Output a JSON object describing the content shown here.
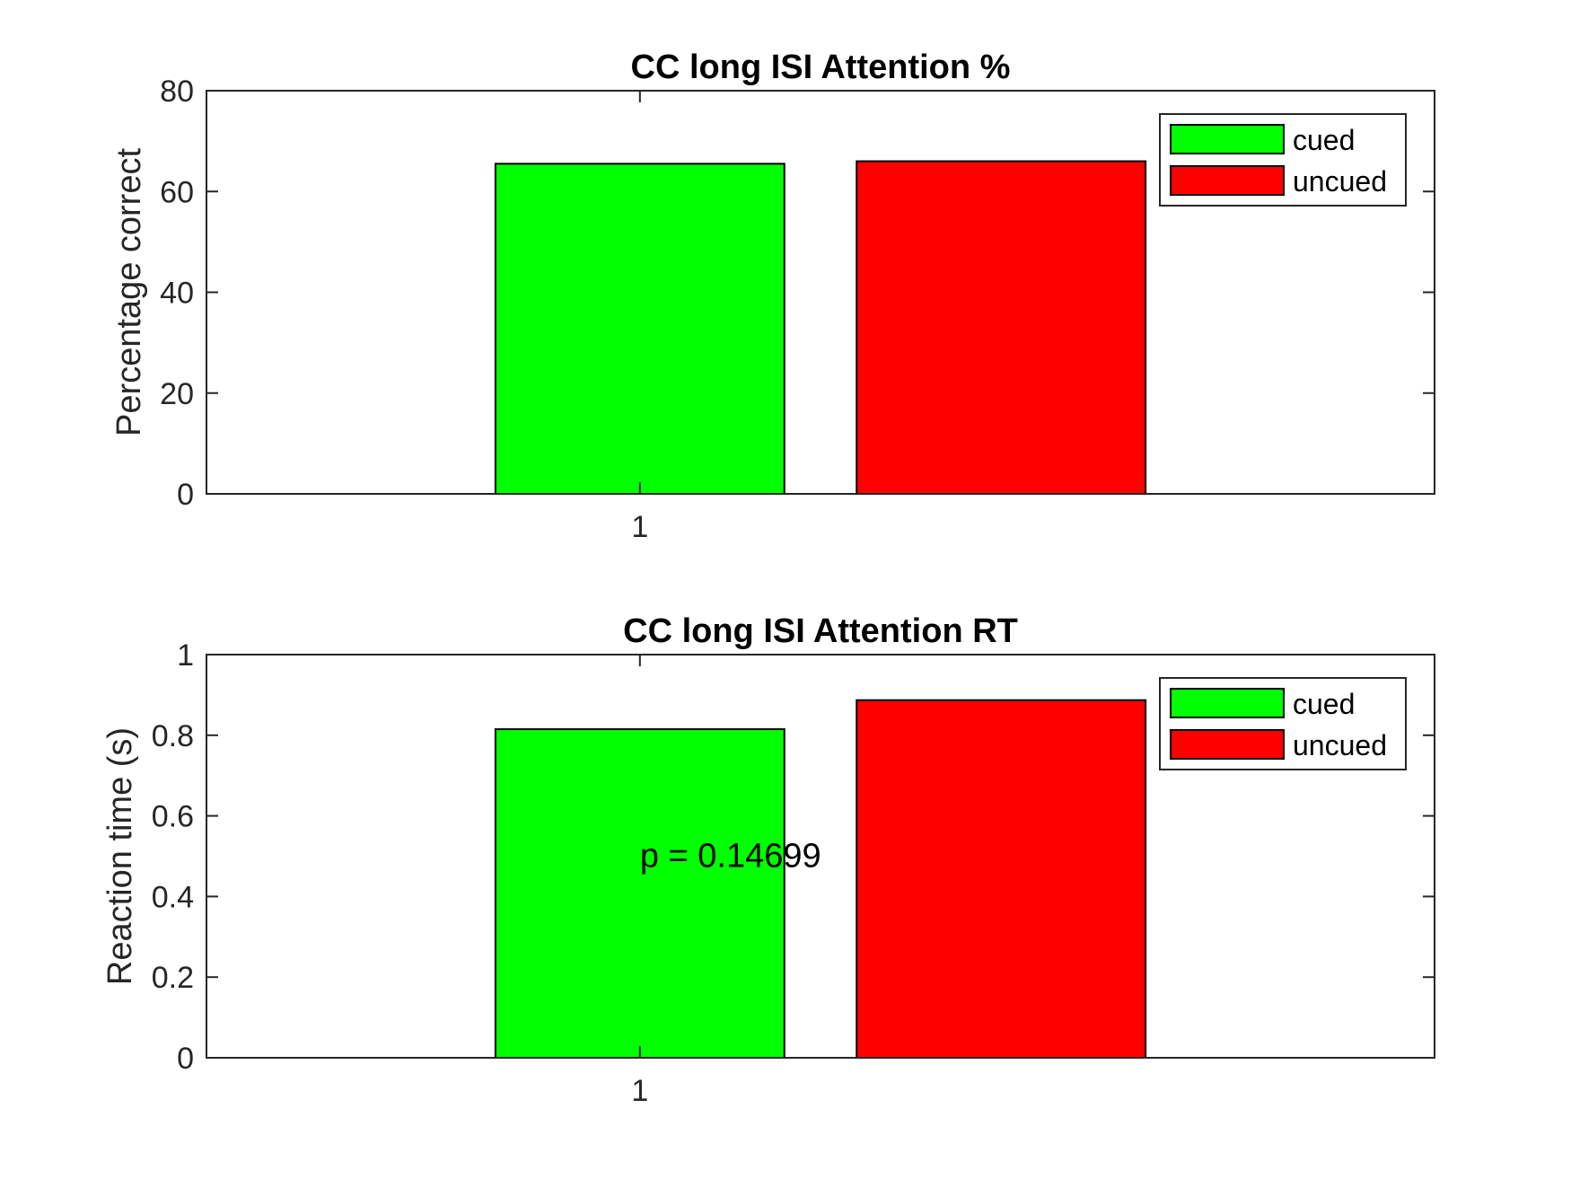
{
  "chart_data": [
    {
      "type": "bar",
      "title": "CC long ISI Attention %",
      "xlabel": "",
      "ylabel": "Percentage correct",
      "categories": [
        "1"
      ],
      "series": [
        {
          "name": "cued",
          "values": [
            65.5
          ],
          "color": "#00ff00"
        },
        {
          "name": "uncued",
          "values": [
            66.0
          ],
          "color": "#ff0000"
        }
      ],
      "ylim": [
        0,
        80
      ],
      "yticks": [
        "0",
        "20",
        "40",
        "60",
        "80"
      ],
      "ytick_values": [
        0,
        20,
        40,
        60,
        80
      ],
      "xlim": [
        0.4,
        2.1
      ],
      "bar_centers": [
        1.0,
        1.5
      ],
      "bar_width": 0.4,
      "legend_position": "top-right",
      "grid": false,
      "annotation": null
    },
    {
      "type": "bar",
      "title": "CC long ISI Attention RT",
      "xlabel": "",
      "ylabel": "Reaction time (s)",
      "categories": [
        "1"
      ],
      "series": [
        {
          "name": "cued",
          "values": [
            0.815
          ],
          "color": "#00ff00"
        },
        {
          "name": "uncued",
          "values": [
            0.887
          ],
          "color": "#ff0000"
        }
      ],
      "ylim": [
        0,
        1
      ],
      "yticks": [
        "0",
        "0.2",
        "0.4",
        "0.6",
        "0.8",
        "1"
      ],
      "ytick_values": [
        0,
        0.2,
        0.4,
        0.6,
        0.8,
        1
      ],
      "xlim": [
        0.4,
        2.1
      ],
      "bar_centers": [
        1.0,
        1.5
      ],
      "bar_width": 0.4,
      "legend_position": "top-right",
      "grid": false,
      "annotation": {
        "text": "p = 0.14699",
        "x": 1.0,
        "y": 0.5
      }
    }
  ]
}
